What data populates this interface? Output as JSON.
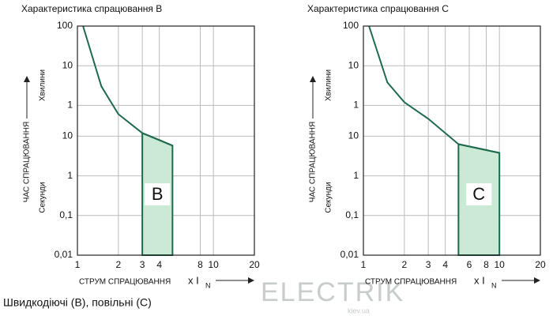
{
  "chart_data": [
    {
      "type": "line",
      "title": "Характеристика спрацювання B",
      "ylabel": "ЧАС СПРАЦЮВАННЯ",
      "minutes_label": "Хвилини",
      "seconds_label": "Секунди",
      "xlabel": "СТРУМ СПРАЦЮВАННЯ",
      "xunit": "x I",
      "xunit_sub": "N",
      "log_x": true,
      "log_y": true,
      "grid": true,
      "xlim": [
        1,
        20
      ],
      "xticks": [
        1,
        2,
        3,
        4,
        8,
        10,
        20
      ],
      "ylim": [
        0.01,
        6000
      ],
      "yticks": [
        {
          "value": 6000,
          "label": "100"
        },
        {
          "value": 600,
          "label": "10"
        },
        {
          "value": 60,
          "label": "1"
        },
        10,
        1,
        {
          "value": 0.1,
          "label": "0,1"
        },
        {
          "value": 0.01,
          "label": "0,01"
        }
      ],
      "x": [
        1.1,
        1.5,
        2,
        3,
        4,
        5
      ],
      "series": [
        {
          "color": "#1d6b4c",
          "values": [
            6000,
            181,
            36,
            12,
            8,
            5.8
          ]
        }
      ],
      "region": {
        "label": "B",
        "x": [
          3,
          5
        ],
        "color": "#cbead5"
      }
    },
    {
      "type": "line",
      "title": "Характеристика спрацювання C",
      "ylabel": "ЧАС СПРАЦЮВАННЯ",
      "minutes_label": "Хвилини",
      "seconds_label": "Секунди",
      "xlabel": "СТРУМ СПРАЦЮВАННЯ",
      "xunit": "x I",
      "xunit_sub": "N",
      "log_x": true,
      "log_y": true,
      "grid": true,
      "xlim": [
        1,
        20
      ],
      "xticks": [
        1,
        2,
        3,
        4,
        6,
        8,
        10,
        20
      ],
      "ylim": [
        0.01,
        6000
      ],
      "yticks": [
        {
          "value": 6000,
          "label": "100"
        },
        {
          "value": 600,
          "label": "10"
        },
        {
          "value": 60,
          "label": "1"
        },
        10,
        1,
        {
          "value": 0.1,
          "label": "0,1"
        },
        {
          "value": 0.01,
          "label": "0,01"
        }
      ],
      "x": [
        1.1,
        1.5,
        2,
        3,
        5,
        10
      ],
      "series": [
        {
          "color": "#1d6b4c",
          "values": [
            6000,
            228,
            72,
            27.5,
            6.3,
            3.8
          ]
        }
      ],
      "region": {
        "label": "C",
        "x": [
          5,
          10
        ],
        "color": "#cbead5"
      }
    }
  ],
  "footer": "Швидкодіючі (В), повільні (С)",
  "watermark": {
    "text": "ELECTRIK",
    "sub": "kiev.ua"
  }
}
